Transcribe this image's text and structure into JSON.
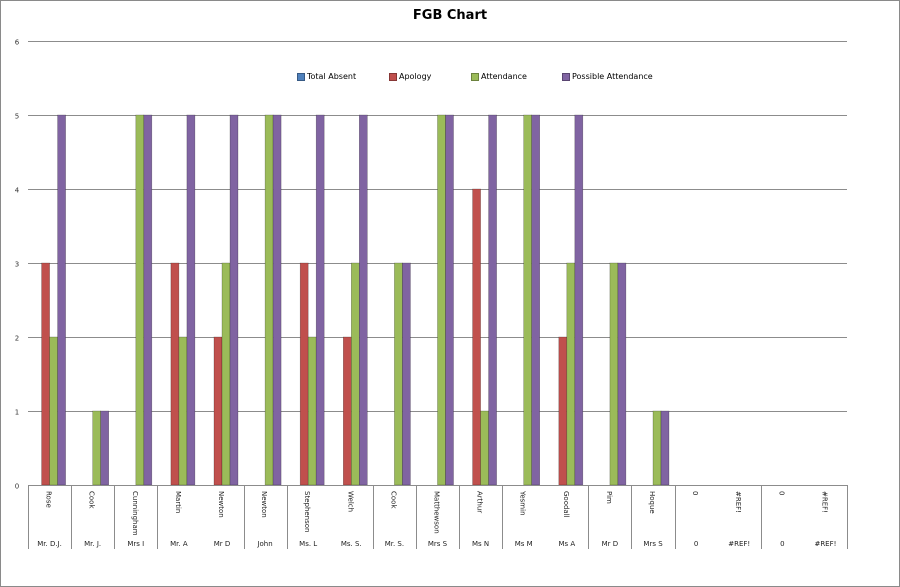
{
  "chart_data": {
    "type": "bar",
    "title": "FGB Chart",
    "xlabel": "",
    "ylabel": "",
    "ylim": [
      0,
      6
    ],
    "yticks": [
      "0",
      "1",
      "2",
      "3",
      "4",
      "5",
      "6"
    ],
    "grid": true,
    "legend_position": "top",
    "categories": [
      "Rose",
      "Cook",
      "Cunningham",
      "Martin",
      "Newton",
      "Newton",
      "Stephenson",
      "Welch",
      "Cook",
      "Matthewson",
      "Arthur",
      "Yesmin",
      "Goodall",
      "Pim",
      "Hoque",
      "0",
      "#REF!",
      "0",
      "#REF!"
    ],
    "outer_groups": [
      [
        "Mr. D.J."
      ],
      [
        "Mr. J."
      ],
      [
        "Mrs I"
      ],
      [
        "Mr. A",
        "Mr D"
      ],
      [
        "John"
      ],
      [
        "Ms. L",
        "Ms. S."
      ],
      [
        "Mr. S."
      ],
      [
        "Mrs S"
      ],
      [
        "Ms N"
      ],
      [
        "Ms M",
        "Ms A"
      ],
      [
        "Mr D"
      ],
      [
        "Mrs S"
      ],
      [
        "0",
        "#REF!"
      ],
      [
        "0",
        "#REF!"
      ]
    ],
    "series": [
      {
        "name": "Total Absent",
        "color": "#4f81bd",
        "values": [
          0,
          0,
          0,
          0,
          0,
          0,
          0,
          0,
          0,
          0,
          0,
          0,
          0,
          0,
          0,
          0,
          0,
          0,
          0
        ]
      },
      {
        "name": "Apology",
        "color": "#c0504d",
        "values": [
          3,
          0,
          0,
          3,
          2,
          0,
          3,
          2,
          0,
          0,
          4,
          0,
          2,
          0,
          0,
          0,
          0,
          0,
          0
        ]
      },
      {
        "name": "Attendance",
        "color": "#9bbb59",
        "values": [
          2,
          1,
          5,
          2,
          3,
          5,
          2,
          3,
          3,
          5,
          1,
          5,
          3,
          3,
          1,
          0,
          0,
          0,
          0
        ]
      },
      {
        "name": "Possible Attendance",
        "color": "#8064a2",
        "values": [
          5,
          1,
          5,
          5,
          5,
          5,
          5,
          5,
          3,
          5,
          5,
          5,
          5,
          3,
          1,
          0,
          0,
          0,
          0
        ]
      }
    ]
  }
}
